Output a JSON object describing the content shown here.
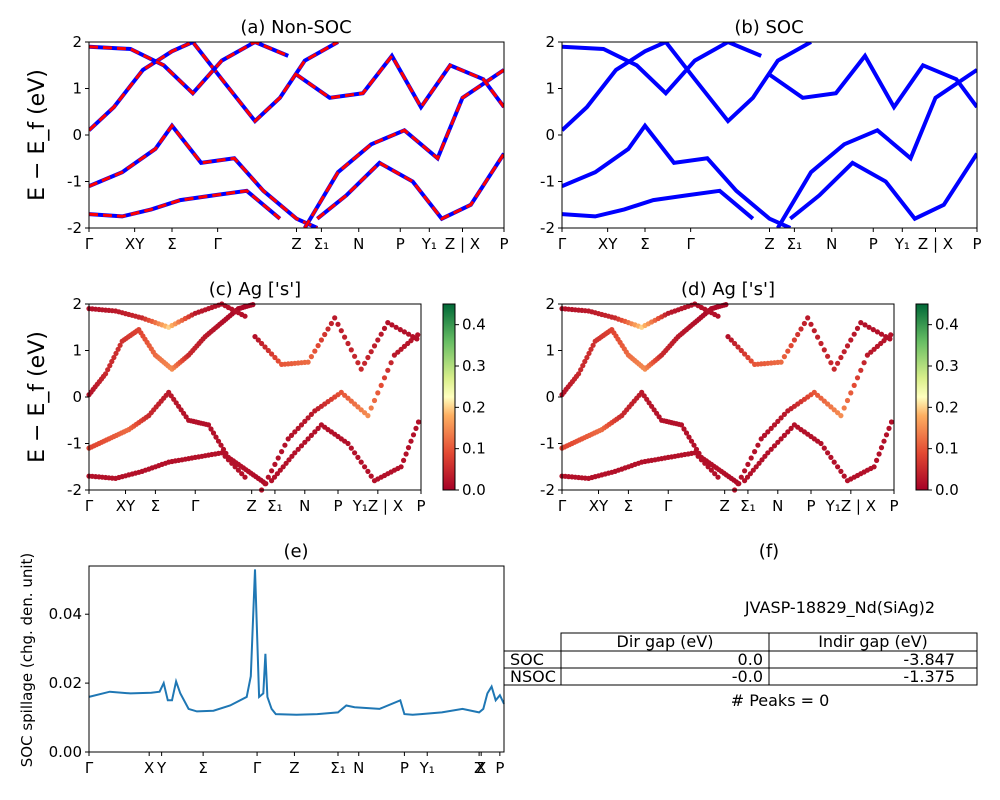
{
  "ylabel_band": "E − E_f (eV)",
  "chart_data": [
    {
      "id": "a",
      "type": "line",
      "title": "(a) Non-SOC",
      "ylim": [
        -2,
        2
      ],
      "yticks": [
        -2,
        -1,
        0,
        1,
        2
      ],
      "xticks": [
        "Γ",
        "XY",
        "Σ",
        "Γ",
        "Z",
        "Σ₁",
        "N",
        "P",
        "Y₁",
        "Z | X",
        "P"
      ],
      "series_colors": [
        "#0000ff",
        "#ff0000"
      ],
      "dashed_overlay": true,
      "series": [
        {
          "x": [
            0,
            0.06,
            0.13,
            0.2,
            0.25,
            0.32,
            0.4,
            0.46,
            0.52,
            0.6
          ],
          "y": [
            0.1,
            0.6,
            1.4,
            1.8,
            2.0,
            1.2,
            0.3,
            0.8,
            1.6,
            2.0
          ]
        },
        {
          "x": [
            0,
            0.08,
            0.16,
            0.2,
            0.27,
            0.35,
            0.42,
            0.5,
            0.55
          ],
          "y": [
            -1.1,
            -0.8,
            -0.3,
            0.2,
            -0.6,
            -0.5,
            -1.2,
            -1.8,
            -2.0
          ]
        },
        {
          "x": [
            0,
            0.1,
            0.18,
            0.25,
            0.32,
            0.4,
            0.48
          ],
          "y": [
            1.9,
            1.85,
            1.5,
            0.9,
            1.6,
            2.0,
            1.7
          ]
        },
        {
          "x": [
            0,
            0.08,
            0.15,
            0.22,
            0.3,
            0.38,
            0.46
          ],
          "y": [
            -1.7,
            -1.75,
            -1.6,
            -1.4,
            -1.3,
            -1.2,
            -1.8
          ]
        },
        {
          "x": [
            0.52,
            0.6,
            0.68,
            0.76,
            0.84,
            0.9,
            1.0
          ],
          "y": [
            -2.0,
            -0.8,
            -0.2,
            0.1,
            -0.5,
            0.8,
            1.4
          ]
        },
        {
          "x": [
            0.5,
            0.58,
            0.66,
            0.73,
            0.8,
            0.87,
            0.95,
            1.0
          ],
          "y": [
            1.3,
            0.8,
            0.9,
            1.7,
            0.6,
            1.5,
            1.2,
            0.6
          ]
        },
        {
          "x": [
            0.55,
            0.62,
            0.7,
            0.78,
            0.85,
            0.92,
            1.0
          ],
          "y": [
            -1.8,
            -1.3,
            -0.6,
            -1.0,
            -1.8,
            -1.5,
            -0.4
          ]
        }
      ]
    },
    {
      "id": "b",
      "type": "line",
      "title": "(b) SOC",
      "ylim": [
        -2,
        2
      ],
      "yticks": [
        -2,
        -1,
        0,
        1,
        2
      ],
      "xticks": [
        "Γ",
        "XY",
        "Σ",
        "Γ",
        "Z",
        "Σ₁",
        "N",
        "P",
        "Y₁",
        "Z | X",
        "P"
      ],
      "series_colors": [
        "#0000ff"
      ],
      "dashed_overlay": false,
      "series": [
        {
          "x": [
            0,
            0.06,
            0.13,
            0.2,
            0.25,
            0.32,
            0.4,
            0.46,
            0.52,
            0.6
          ],
          "y": [
            0.1,
            0.6,
            1.4,
            1.8,
            2.0,
            1.2,
            0.3,
            0.8,
            1.6,
            2.0
          ]
        },
        {
          "x": [
            0,
            0.08,
            0.16,
            0.2,
            0.27,
            0.35,
            0.42,
            0.5,
            0.55
          ],
          "y": [
            -1.1,
            -0.8,
            -0.3,
            0.2,
            -0.6,
            -0.5,
            -1.2,
            -1.8,
            -2.0
          ]
        },
        {
          "x": [
            0,
            0.1,
            0.18,
            0.25,
            0.32,
            0.4,
            0.48
          ],
          "y": [
            1.9,
            1.85,
            1.5,
            0.9,
            1.6,
            2.0,
            1.7
          ]
        },
        {
          "x": [
            0,
            0.08,
            0.15,
            0.22,
            0.3,
            0.38,
            0.46
          ],
          "y": [
            -1.7,
            -1.75,
            -1.6,
            -1.4,
            -1.3,
            -1.2,
            -1.8
          ]
        },
        {
          "x": [
            0.52,
            0.6,
            0.68,
            0.76,
            0.84,
            0.9,
            1.0
          ],
          "y": [
            -2.0,
            -0.8,
            -0.2,
            0.1,
            -0.5,
            0.8,
            1.4
          ]
        },
        {
          "x": [
            0.5,
            0.58,
            0.66,
            0.73,
            0.8,
            0.87,
            0.95,
            1.0
          ],
          "y": [
            1.3,
            0.8,
            0.9,
            1.7,
            0.6,
            1.5,
            1.2,
            0.6
          ]
        },
        {
          "x": [
            0.55,
            0.62,
            0.7,
            0.78,
            0.85,
            0.92,
            1.0
          ],
          "y": [
            -1.8,
            -1.3,
            -0.6,
            -1.0,
            -1.8,
            -1.5,
            -0.4
          ]
        }
      ]
    },
    {
      "id": "c",
      "type": "scatter",
      "title": "(c)  Ag ['s']",
      "ylim": [
        -2,
        2
      ],
      "yticks": [
        -2,
        -1,
        0,
        1,
        2
      ],
      "xticks": [
        "Γ",
        "XY",
        "Σ",
        "Γ",
        "Z",
        "Σ₁",
        "N",
        "P",
        "Y₁Z | X",
        "P"
      ],
      "colorbar": {
        "min": 0.0,
        "max": 0.45,
        "ticks": [
          0.0,
          0.1,
          0.2,
          0.3,
          0.4
        ],
        "colormap": "RdYlGn"
      },
      "series": [
        {
          "x": [
            0,
            0.05,
            0.1,
            0.15,
            0.2,
            0.25,
            0.3,
            0.35,
            0.4,
            0.45,
            0.5
          ],
          "y": [
            0.05,
            0.5,
            1.2,
            1.45,
            0.9,
            0.6,
            0.9,
            1.3,
            1.6,
            1.9,
            2.0
          ],
          "w": [
            0.02,
            0.05,
            0.06,
            0.08,
            0.12,
            0.15,
            0.05,
            0.03,
            0.02,
            0.01,
            0.01
          ]
        },
        {
          "x": [
            0,
            0.06,
            0.12,
            0.18,
            0.24,
            0.3,
            0.36,
            0.42,
            0.48,
            0.54
          ],
          "y": [
            -1.1,
            -0.9,
            -0.7,
            -0.4,
            0.1,
            -0.5,
            -0.6,
            -1.3,
            -1.6,
            -1.9
          ],
          "w": [
            0.08,
            0.1,
            0.12,
            0.05,
            0.03,
            0.02,
            0.02,
            0.02,
            0.02,
            0.01
          ]
        },
        {
          "x": [
            0,
            0.08,
            0.16,
            0.24,
            0.32,
            0.4,
            0.48
          ],
          "y": [
            1.9,
            1.85,
            1.7,
            1.5,
            1.8,
            2.0,
            1.7
          ],
          "w": [
            0.02,
            0.03,
            0.05,
            0.2,
            0.03,
            0.02,
            0.02
          ]
        },
        {
          "x": [
            0,
            0.08,
            0.16,
            0.24,
            0.32,
            0.4,
            0.48
          ],
          "y": [
            -1.7,
            -1.75,
            -1.6,
            -1.4,
            -1.3,
            -1.2,
            -1.8
          ],
          "w": [
            0.02,
            0.02,
            0.02,
            0.02,
            0.02,
            0.02,
            0.02
          ]
        },
        {
          "x": [
            0.52,
            0.6,
            0.68,
            0.76,
            0.84,
            0.92,
            1.0
          ],
          "y": [
            -2.0,
            -0.9,
            -0.3,
            0.1,
            -0.4,
            0.9,
            1.4
          ],
          "w": [
            0.02,
            0.02,
            0.03,
            0.1,
            0.15,
            0.03,
            0.02
          ]
        },
        {
          "x": [
            0.5,
            0.58,
            0.66,
            0.74,
            0.82,
            0.9,
            1.0
          ],
          "y": [
            1.3,
            0.7,
            0.75,
            1.7,
            0.6,
            1.6,
            1.2
          ],
          "w": [
            0.02,
            0.1,
            0.12,
            0.03,
            0.05,
            0.02,
            0.02
          ]
        },
        {
          "x": [
            0.55,
            0.62,
            0.7,
            0.78,
            0.86,
            0.94,
            1.0
          ],
          "y": [
            -1.8,
            -1.2,
            -0.6,
            -1.0,
            -1.8,
            -1.5,
            -0.4
          ],
          "w": [
            0.02,
            0.02,
            0.02,
            0.02,
            0.02,
            0.02,
            0.02
          ]
        }
      ]
    },
    {
      "id": "d",
      "type": "scatter",
      "title": "(d) Ag ['s']",
      "ylim": [
        -2,
        2
      ],
      "yticks": [
        -2,
        -1,
        0,
        1,
        2
      ],
      "xticks": [
        "Γ",
        "XY",
        "Σ",
        "Γ",
        "Z",
        "Σ₁",
        "N",
        "P",
        "Y₁Z | X",
        "P"
      ],
      "colorbar": {
        "min": 0.0,
        "max": 0.45,
        "ticks": [
          0.0,
          0.1,
          0.2,
          0.3,
          0.4
        ],
        "colormap": "RdYlGn"
      },
      "series": [
        {
          "x": [
            0,
            0.05,
            0.1,
            0.15,
            0.2,
            0.25,
            0.3,
            0.35,
            0.4,
            0.45,
            0.5
          ],
          "y": [
            0.05,
            0.5,
            1.2,
            1.45,
            0.9,
            0.6,
            0.9,
            1.3,
            1.6,
            1.9,
            2.0
          ],
          "w": [
            0.02,
            0.05,
            0.06,
            0.08,
            0.12,
            0.15,
            0.05,
            0.03,
            0.02,
            0.01,
            0.01
          ]
        },
        {
          "x": [
            0,
            0.06,
            0.12,
            0.18,
            0.24,
            0.3,
            0.36,
            0.42,
            0.48,
            0.54
          ],
          "y": [
            -1.1,
            -0.9,
            -0.7,
            -0.4,
            0.1,
            -0.5,
            -0.6,
            -1.3,
            -1.6,
            -1.9
          ],
          "w": [
            0.08,
            0.1,
            0.12,
            0.05,
            0.03,
            0.02,
            0.02,
            0.02,
            0.02,
            0.01
          ]
        },
        {
          "x": [
            0,
            0.08,
            0.16,
            0.24,
            0.32,
            0.4,
            0.48
          ],
          "y": [
            1.9,
            1.85,
            1.7,
            1.5,
            1.8,
            2.0,
            1.7
          ],
          "w": [
            0.02,
            0.03,
            0.05,
            0.2,
            0.03,
            0.02,
            0.02
          ]
        },
        {
          "x": [
            0,
            0.08,
            0.16,
            0.24,
            0.32,
            0.4,
            0.48
          ],
          "y": [
            -1.7,
            -1.75,
            -1.6,
            -1.4,
            -1.3,
            -1.2,
            -1.8
          ],
          "w": [
            0.02,
            0.02,
            0.02,
            0.02,
            0.02,
            0.02,
            0.02
          ]
        },
        {
          "x": [
            0.52,
            0.6,
            0.68,
            0.76,
            0.84,
            0.92,
            1.0
          ],
          "y": [
            -2.0,
            -0.9,
            -0.3,
            0.1,
            -0.4,
            0.9,
            1.4
          ],
          "w": [
            0.02,
            0.02,
            0.03,
            0.1,
            0.15,
            0.03,
            0.02
          ]
        },
        {
          "x": [
            0.5,
            0.58,
            0.66,
            0.74,
            0.82,
            0.9,
            1.0
          ],
          "y": [
            1.3,
            0.7,
            0.75,
            1.7,
            0.6,
            1.6,
            1.2
          ],
          "w": [
            0.02,
            0.1,
            0.12,
            0.03,
            0.05,
            0.02,
            0.02
          ]
        },
        {
          "x": [
            0.55,
            0.62,
            0.7,
            0.78,
            0.86,
            0.94,
            1.0
          ],
          "y": [
            -1.8,
            -1.2,
            -0.6,
            -1.0,
            -1.8,
            -1.5,
            -0.4
          ],
          "w": [
            0.02,
            0.02,
            0.02,
            0.02,
            0.02,
            0.02,
            0.02
          ]
        }
      ]
    },
    {
      "id": "e",
      "type": "line",
      "title": "(e)",
      "ylabel": "SOC spillage (chg. den. unit)",
      "ylim": [
        0.0,
        0.054
      ],
      "yticks": [
        0.0,
        0.02,
        0.04
      ],
      "xticks": [
        "Γ",
        "X",
        "Y",
        "Σ",
        "Γ",
        "Z",
        "Σ₁",
        "N",
        "P",
        "Y₁",
        "Z",
        "X",
        "P"
      ],
      "color": "#1f77b4",
      "x": [
        0,
        0.05,
        0.1,
        0.15,
        0.17,
        0.18,
        0.19,
        0.2,
        0.21,
        0.22,
        0.24,
        0.26,
        0.3,
        0.34,
        0.38,
        0.39,
        0.4,
        0.41,
        0.42,
        0.425,
        0.43,
        0.44,
        0.45,
        0.5,
        0.55,
        0.6,
        0.62,
        0.64,
        0.7,
        0.75,
        0.76,
        0.78,
        0.8,
        0.85,
        0.9,
        0.94,
        0.95,
        0.96,
        0.97,
        0.98,
        0.99,
        1.0
      ],
      "y": [
        0.016,
        0.0175,
        0.017,
        0.0172,
        0.0175,
        0.02,
        0.015,
        0.015,
        0.0205,
        0.017,
        0.0125,
        0.0118,
        0.012,
        0.0135,
        0.016,
        0.022,
        0.053,
        0.016,
        0.017,
        0.0285,
        0.016,
        0.0125,
        0.011,
        0.0108,
        0.011,
        0.0115,
        0.0135,
        0.013,
        0.0125,
        0.015,
        0.011,
        0.0108,
        0.011,
        0.0115,
        0.0125,
        0.0115,
        0.0125,
        0.017,
        0.019,
        0.015,
        0.0165,
        0.014
      ]
    }
  ],
  "panel_f": {
    "title": "(f)",
    "material": "JVASP-18829_Nd(SiAg)2",
    "table": {
      "headers": [
        "",
        "Dir gap (eV)",
        "Indir gap (eV)"
      ],
      "rows": [
        [
          "SOC",
          "0.0",
          "-3.847"
        ],
        [
          "NSOC",
          "-0.0",
          "-1.375"
        ]
      ]
    },
    "peaks": "# Peaks = 0"
  }
}
